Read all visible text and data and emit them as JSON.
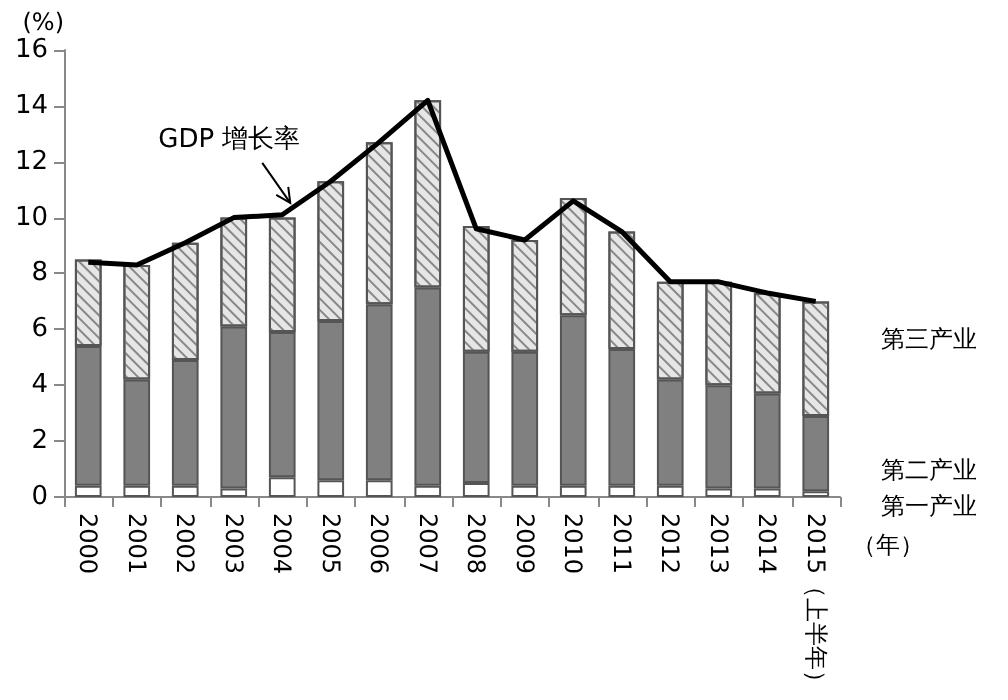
{
  "chart_data": {
    "type": "bar",
    "stacked": true,
    "ylabel": "(%)",
    "xlabel": "（年）",
    "categories": [
      "2000",
      "2001",
      "2002",
      "2003",
      "2004",
      "2005",
      "2006",
      "2007",
      "2008",
      "2009",
      "2010",
      "2011",
      "2012",
      "2013",
      "2014",
      "2015（上半年）"
    ],
    "series": [
      {
        "name": "第一产业",
        "color": "#ffffff",
        "values": [
          0.4,
          0.4,
          0.4,
          0.3,
          0.7,
          0.6,
          0.6,
          0.4,
          0.5,
          0.4,
          0.4,
          0.4,
          0.4,
          0.3,
          0.3,
          0.2
        ]
      },
      {
        "name": "第二产业",
        "color": "#808080",
        "values": [
          5.0,
          3.8,
          4.5,
          5.8,
          5.2,
          5.7,
          6.3,
          7.1,
          4.7,
          4.8,
          6.1,
          4.9,
          3.8,
          3.7,
          3.4,
          2.7
        ]
      },
      {
        "name": "第三产业",
        "color": "#e6e6e6",
        "values": [
          3.1,
          4.1,
          4.2,
          3.9,
          4.1,
          5.0,
          5.8,
          6.7,
          4.5,
          4.0,
          4.2,
          4.2,
          3.5,
          3.7,
          3.6,
          4.1
        ]
      },
      {
        "name": "GDP 增长率",
        "type": "line",
        "color": "#000000",
        "marker": "none",
        "values": [
          8.4,
          8.3,
          9.1,
          10.0,
          10.1,
          11.3,
          12.7,
          14.2,
          9.6,
          9.2,
          10.6,
          9.5,
          7.7,
          7.7,
          7.3,
          7.0
        ]
      }
    ],
    "ylim": [
      0,
      16
    ],
    "yticks": [
      0,
      2,
      4,
      6,
      8,
      10,
      12,
      14,
      16
    ],
    "grid": false,
    "legend": false
  }
}
